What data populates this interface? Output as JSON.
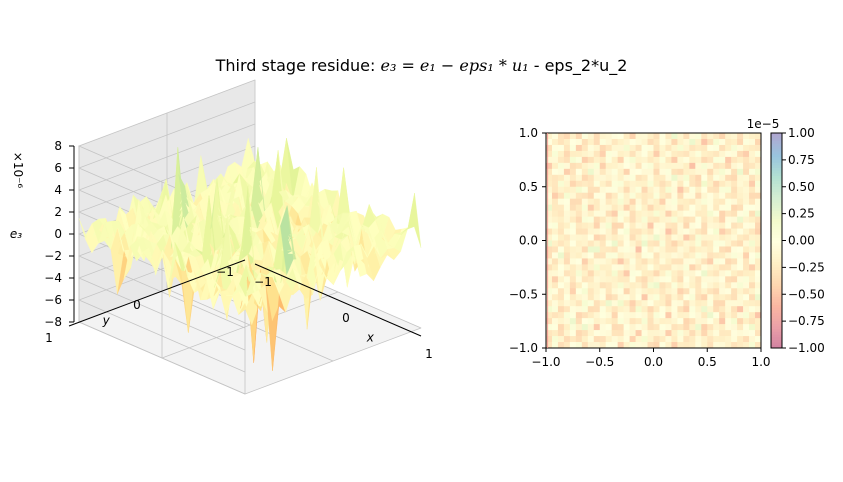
{
  "title": {
    "prefix": "Third stage residue: ",
    "math": "e₃ = e₁ − eps₁ * u₁",
    "suffix": " - eps_2*u_2"
  },
  "chart_data": [
    {
      "type": "surface3d",
      "xlabel": "x",
      "ylabel": "y",
      "zlabel": "e₃",
      "z_offset_label": "×10⁻⁶",
      "x_ticks": [
        "−1",
        "0",
        "1"
      ],
      "y_ticks": [
        "−1",
        "0",
        "1"
      ],
      "z_ticks": [
        "−8",
        "−6",
        "−4",
        "−2",
        "0",
        "2",
        "4",
        "6",
        "8"
      ],
      "xlim": [
        -1,
        1
      ],
      "ylim": [
        -1,
        1
      ],
      "zlim": [
        -8,
        8
      ],
      "colormap": "Spectral",
      "grid": true
    },
    {
      "type": "heatmap",
      "x_ticks": [
        "−1.0",
        "−0.5",
        "0.0",
        "0.5",
        "1.0"
      ],
      "y_ticks": [
        "−1.0",
        "−0.5",
        "0.0",
        "0.5",
        "1.0"
      ],
      "xlim": [
        -1,
        1
      ],
      "ylim": [
        -1,
        1
      ],
      "colormap": "Spectral",
      "alpha": 0.5,
      "colorbar": {
        "offset_label": "1e−5",
        "ticks": [
          "−1.00",
          "−0.75",
          "−0.50",
          "−0.25",
          "0.00",
          "0.25",
          "0.50",
          "0.75",
          "1.00"
        ],
        "range": [
          -1,
          1
        ]
      }
    }
  ],
  "colors": {
    "spectral": [
      "#9e0142",
      "#d53e4f",
      "#f46d43",
      "#fdae61",
      "#fee08b",
      "#ffffbf",
      "#e6f598",
      "#abdda4",
      "#66c2a5",
      "#3288bd",
      "#5e4fa2"
    ],
    "pane": "#f2f2f2",
    "grid": "#c8c8c8"
  }
}
